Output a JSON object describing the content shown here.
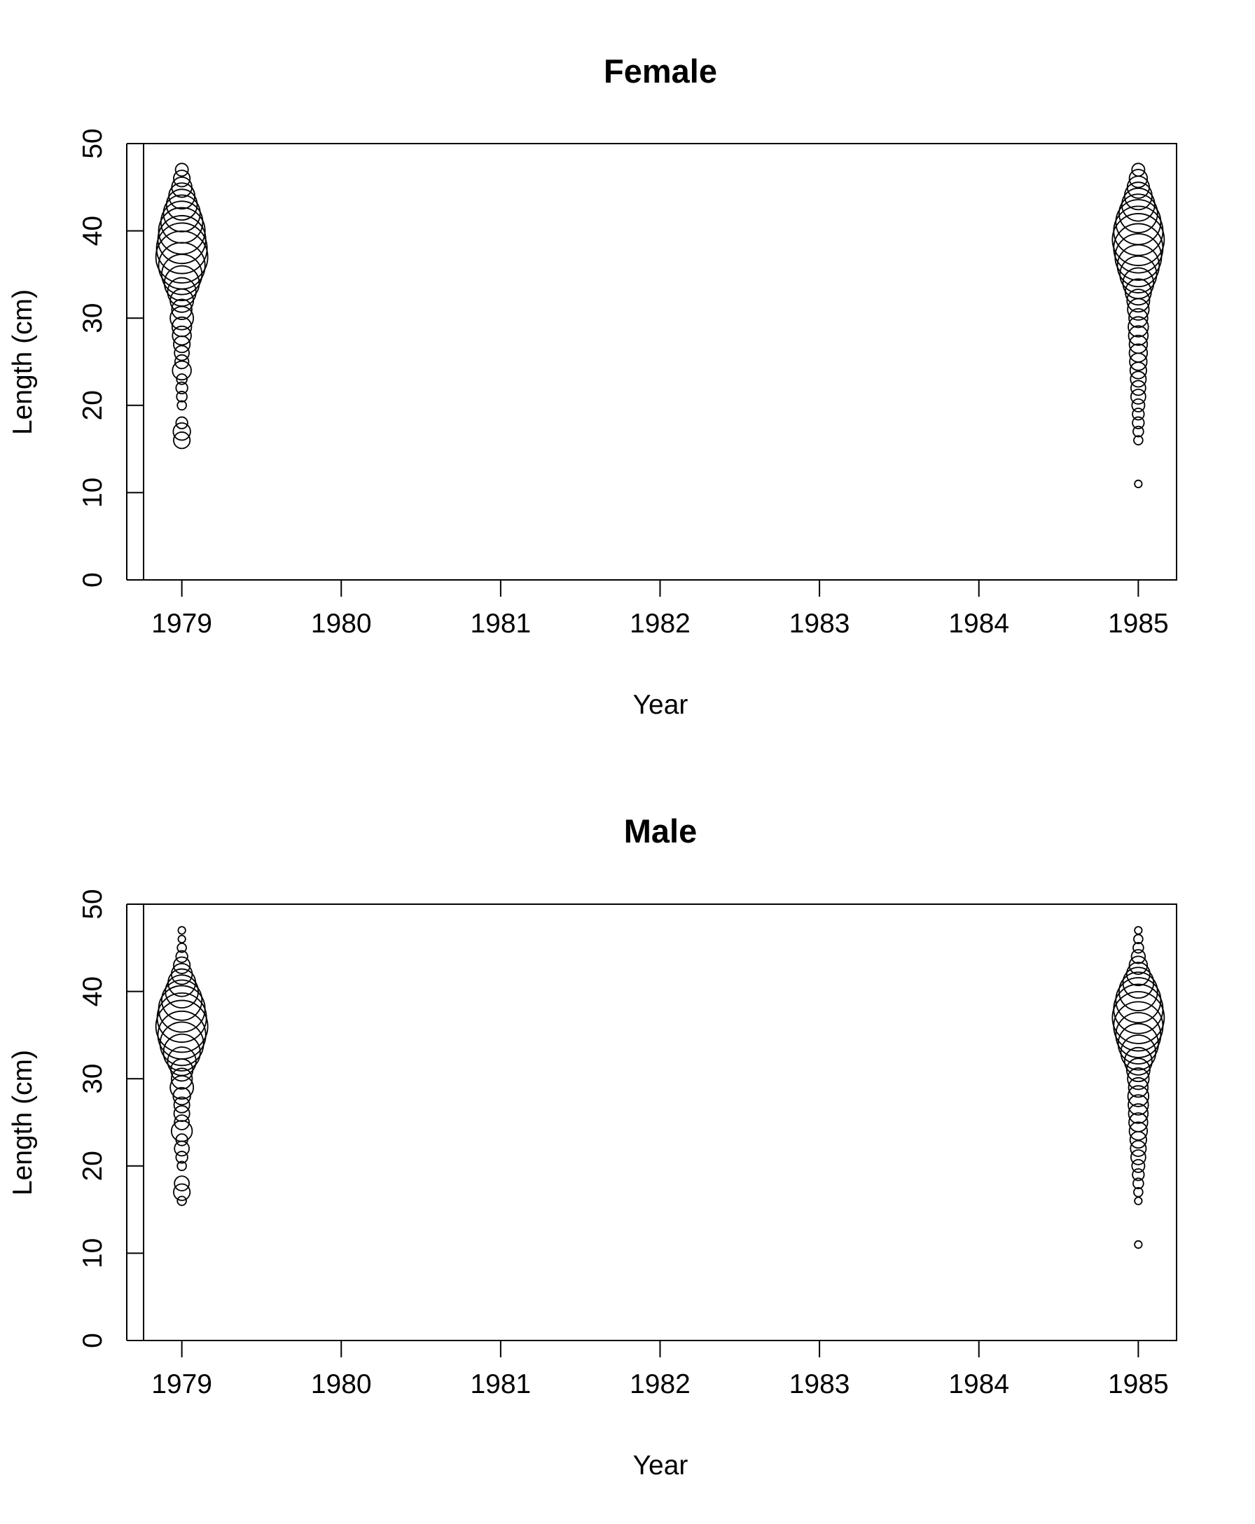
{
  "chart_data": [
    {
      "type": "scatter",
      "title": "Female",
      "xlabel": "Year",
      "ylabel": "Length (cm)",
      "xlim": [
        1978.76,
        1985.24
      ],
      "ylim": [
        0,
        50
      ],
      "x_ticks": [
        "1979",
        "1980",
        "1981",
        "1982",
        "1983",
        "1984",
        "1985"
      ],
      "y_ticks": [
        "0",
        "10",
        "20",
        "30",
        "40",
        "50"
      ],
      "series": [
        {
          "year": 1979,
          "points": [
            {
              "length": 16,
              "size": 0.1
            },
            {
              "length": 17,
              "size": 0.11
            },
            {
              "length": 18,
              "size": 0.05
            },
            {
              "length": 20,
              "size": 0.03
            },
            {
              "length": 21,
              "size": 0.04
            },
            {
              "length": 22,
              "size": 0.05
            },
            {
              "length": 23,
              "size": 0.04
            },
            {
              "length": 24,
              "size": 0.13
            },
            {
              "length": 25,
              "size": 0.07
            },
            {
              "length": 26,
              "size": 0.08
            },
            {
              "length": 27,
              "size": 0.1
            },
            {
              "length": 28,
              "size": 0.13
            },
            {
              "length": 29,
              "size": 0.14
            },
            {
              "length": 30,
              "size": 0.2
            },
            {
              "length": 31,
              "size": 0.15
            },
            {
              "length": 32,
              "size": 0.2
            },
            {
              "length": 33,
              "size": 0.3
            },
            {
              "length": 34,
              "size": 0.45
            },
            {
              "length": 35,
              "size": 0.6
            },
            {
              "length": 36,
              "size": 0.8
            },
            {
              "length": 37,
              "size": 1.0
            },
            {
              "length": 38,
              "size": 0.95
            },
            {
              "length": 39,
              "size": 0.85
            },
            {
              "length": 40,
              "size": 0.8
            },
            {
              "length": 41,
              "size": 0.65
            },
            {
              "length": 42,
              "size": 0.5
            },
            {
              "length": 43,
              "size": 0.35
            },
            {
              "length": 44,
              "size": 0.25
            },
            {
              "length": 45,
              "size": 0.15
            },
            {
              "length": 46,
              "size": 0.1
            },
            {
              "length": 47,
              "size": 0.06
            }
          ]
        },
        {
          "year": 1985,
          "points": [
            {
              "length": 11,
              "size": 0.02
            },
            {
              "length": 16,
              "size": 0.03
            },
            {
              "length": 17,
              "size": 0.04
            },
            {
              "length": 18,
              "size": 0.05
            },
            {
              "length": 19,
              "size": 0.05
            },
            {
              "length": 20,
              "size": 0.06
            },
            {
              "length": 21,
              "size": 0.08
            },
            {
              "length": 22,
              "size": 0.08
            },
            {
              "length": 23,
              "size": 0.09
            },
            {
              "length": 24,
              "size": 0.1
            },
            {
              "length": 25,
              "size": 0.11
            },
            {
              "length": 26,
              "size": 0.12
            },
            {
              "length": 27,
              "size": 0.12
            },
            {
              "length": 28,
              "size": 0.14
            },
            {
              "length": 29,
              "size": 0.15
            },
            {
              "length": 30,
              "size": 0.13
            },
            {
              "length": 31,
              "size": 0.17
            },
            {
              "length": 32,
              "size": 0.19
            },
            {
              "length": 33,
              "size": 0.25
            },
            {
              "length": 34,
              "size": 0.35
            },
            {
              "length": 35,
              "size": 0.5
            },
            {
              "length": 36,
              "size": 0.65
            },
            {
              "length": 37,
              "size": 0.8
            },
            {
              "length": 38,
              "size": 0.9
            },
            {
              "length": 39,
              "size": 1.0
            },
            {
              "length": 40,
              "size": 0.9
            },
            {
              "length": 41,
              "size": 0.75
            },
            {
              "length": 42,
              "size": 0.55
            },
            {
              "length": 43,
              "size": 0.4
            },
            {
              "length": 44,
              "size": 0.28
            },
            {
              "length": 45,
              "size": 0.18
            },
            {
              "length": 46,
              "size": 0.12
            },
            {
              "length": 47,
              "size": 0.06
            }
          ]
        }
      ]
    },
    {
      "type": "scatter",
      "title": "Male",
      "xlabel": "Year",
      "ylabel": "Length (cm)",
      "xlim": [
        1978.76,
        1985.24
      ],
      "ylim": [
        0,
        50
      ],
      "x_ticks": [
        "1979",
        "1980",
        "1981",
        "1982",
        "1983",
        "1984",
        "1985"
      ],
      "y_ticks": [
        "0",
        "10",
        "20",
        "30",
        "40",
        "50"
      ],
      "series": [
        {
          "year": 1979,
          "points": [
            {
              "length": 16,
              "size": 0.03
            },
            {
              "length": 17,
              "size": 0.1
            },
            {
              "length": 18,
              "size": 0.08
            },
            {
              "length": 20,
              "size": 0.03
            },
            {
              "length": 21,
              "size": 0.05
            },
            {
              "length": 22,
              "size": 0.08
            },
            {
              "length": 23,
              "size": 0.05
            },
            {
              "length": 24,
              "size": 0.16
            },
            {
              "length": 25,
              "size": 0.08
            },
            {
              "length": 26,
              "size": 0.09
            },
            {
              "length": 27,
              "size": 0.09
            },
            {
              "length": 28,
              "size": 0.11
            },
            {
              "length": 29,
              "size": 0.2
            },
            {
              "length": 30,
              "size": 0.16
            },
            {
              "length": 31,
              "size": 0.18
            },
            {
              "length": 32,
              "size": 0.3
            },
            {
              "length": 33,
              "size": 0.5
            },
            {
              "length": 34,
              "size": 0.7
            },
            {
              "length": 35,
              "size": 0.85
            },
            {
              "length": 36,
              "size": 1.0
            },
            {
              "length": 37,
              "size": 0.9
            },
            {
              "length": 38,
              "size": 0.8
            },
            {
              "length": 39,
              "size": 0.6
            },
            {
              "length": 40,
              "size": 0.4
            },
            {
              "length": 41,
              "size": 0.28
            },
            {
              "length": 42,
              "size": 0.16
            },
            {
              "length": 43,
              "size": 0.1
            },
            {
              "length": 44,
              "size": 0.05
            },
            {
              "length": 45,
              "size": 0.03
            },
            {
              "length": 46,
              "size": 0.02
            },
            {
              "length": 47,
              "size": 0.02
            }
          ]
        },
        {
          "year": 1985,
          "points": [
            {
              "length": 11,
              "size": 0.02
            },
            {
              "length": 16,
              "size": 0.02
            },
            {
              "length": 17,
              "size": 0.03
            },
            {
              "length": 18,
              "size": 0.04
            },
            {
              "length": 19,
              "size": 0.05
            },
            {
              "length": 20,
              "size": 0.06
            },
            {
              "length": 21,
              "size": 0.08
            },
            {
              "length": 22,
              "size": 0.09
            },
            {
              "length": 23,
              "size": 0.1
            },
            {
              "length": 24,
              "size": 0.12
            },
            {
              "length": 25,
              "size": 0.13
            },
            {
              "length": 26,
              "size": 0.14
            },
            {
              "length": 27,
              "size": 0.15
            },
            {
              "length": 28,
              "size": 0.16
            },
            {
              "length": 29,
              "size": 0.14
            },
            {
              "length": 30,
              "size": 0.17
            },
            {
              "length": 31,
              "size": 0.2
            },
            {
              "length": 32,
              "size": 0.28
            },
            {
              "length": 33,
              "size": 0.45
            },
            {
              "length": 34,
              "size": 0.6
            },
            {
              "length": 35,
              "size": 0.75
            },
            {
              "length": 36,
              "size": 0.9
            },
            {
              "length": 37,
              "size": 1.0
            },
            {
              "length": 38,
              "size": 0.9
            },
            {
              "length": 39,
              "size": 0.75
            },
            {
              "length": 40,
              "size": 0.55
            },
            {
              "length": 41,
              "size": 0.35
            },
            {
              "length": 42,
              "size": 0.2
            },
            {
              "length": 43,
              "size": 0.12
            },
            {
              "length": 44,
              "size": 0.07
            },
            {
              "length": 45,
              "size": 0.04
            },
            {
              "length": 46,
              "size": 0.03
            },
            {
              "length": 47,
              "size": 0.02
            }
          ]
        }
      ]
    }
  ]
}
